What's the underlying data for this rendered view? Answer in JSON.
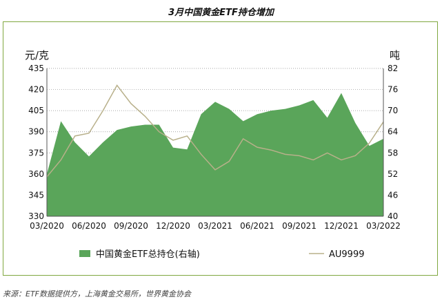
{
  "chart_data": {
    "type": "area",
    "title": "3月中国黄金ETF持仓增加",
    "source": "来源：ETF数据提供方，上海黄金交易所，世界黄金协会",
    "left_unit": "元/克",
    "right_unit": "吨",
    "left_axis": {
      "min": 330,
      "max": 435,
      "ticks": [
        435,
        420,
        405,
        390,
        375,
        360,
        345,
        330
      ]
    },
    "right_axis": {
      "min": 40,
      "max": 82,
      "ticks": [
        82,
        76,
        70,
        64,
        58,
        52,
        46,
        40
      ]
    },
    "x_ticks": [
      "03/2020",
      "06/2020",
      "09/2020",
      "12/2020",
      "03/2021",
      "06/2021",
      "09/2021",
      "12/2021",
      "03/2022"
    ],
    "x_range": [
      0,
      24
    ],
    "grid": true,
    "legend_position": "bottom",
    "series": [
      {
        "name": "中国黄金ETF总持仓(右轴)",
        "axis": "right",
        "kind": "area",
        "color": "#5aa55a",
        "x": [
          0,
          1,
          2,
          3,
          4,
          5,
          6,
          7,
          8,
          9,
          10,
          11,
          12,
          13,
          14,
          15,
          16,
          17,
          18,
          19,
          20,
          21,
          22,
          23,
          24
        ],
        "values": [
          52,
          67,
          61,
          57,
          61,
          64.5,
          65.5,
          66,
          66,
          59.5,
          59,
          69,
          72.5,
          70.5,
          67,
          69,
          70,
          70.5,
          71.5,
          73,
          68,
          75,
          66.5,
          60,
          62
        ]
      },
      {
        "name": "AU9999",
        "axis": "left",
        "kind": "line",
        "color": "#b8b08a",
        "x": [
          0,
          1,
          2,
          3,
          4,
          5,
          6,
          7,
          8,
          9,
          10,
          11,
          12,
          13,
          14,
          15,
          16,
          17,
          18,
          19,
          20,
          21,
          22,
          23,
          24
        ],
        "values": [
          358,
          370,
          387,
          389,
          405,
          423,
          410,
          401,
          390,
          384,
          387,
          374,
          363,
          369,
          385,
          379,
          377,
          374,
          373,
          370,
          375,
          370,
          373,
          382,
          397
        ]
      }
    ]
  }
}
